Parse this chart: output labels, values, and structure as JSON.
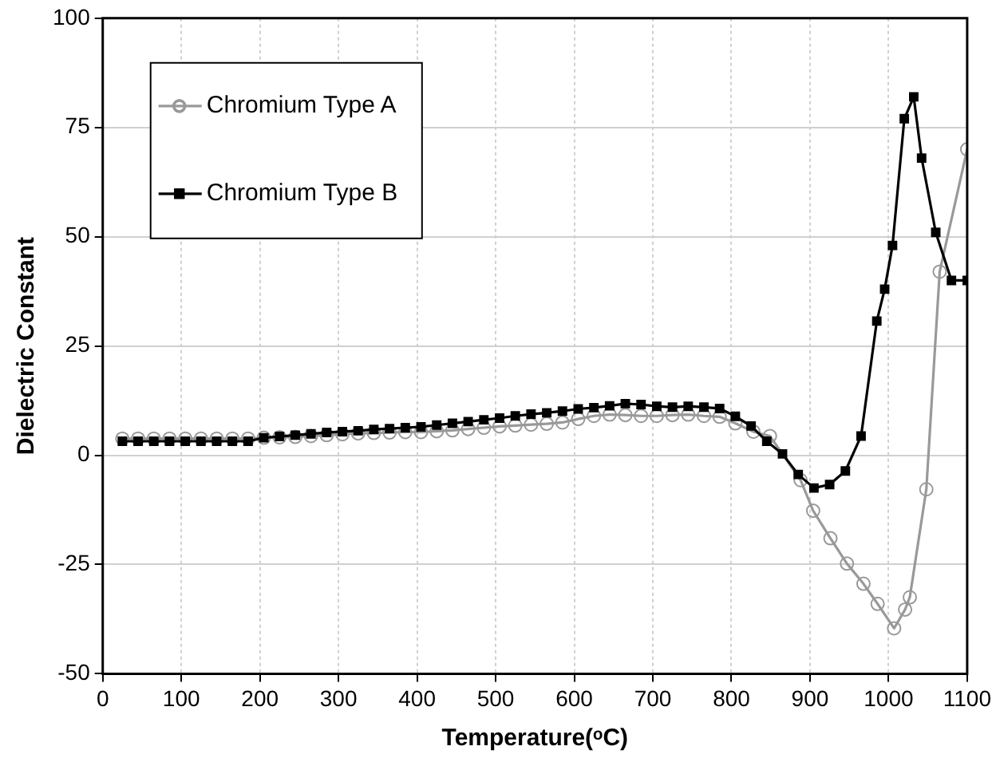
{
  "chart_data": {
    "type": "line",
    "xlabel": "Temperature(ᵒC)",
    "ylabel": "Dielectric Constant",
    "xlim": [
      0,
      1100
    ],
    "xticks": [
      0,
      100,
      200,
      300,
      400,
      500,
      600,
      700,
      800,
      900,
      1000,
      1100
    ],
    "ylim": [
      -50,
      100
    ],
    "yticks": [
      -50,
      -25,
      0,
      25,
      50,
      75,
      100
    ],
    "grid": true,
    "legend": "top left",
    "line_style": "solid",
    "series": [
      {
        "name": "Chromium Type A",
        "color": "#999999",
        "marker": "circle",
        "x": [
          25,
          45,
          65,
          85,
          105,
          125,
          145,
          165,
          185,
          205,
          225,
          245,
          265,
          285,
          305,
          325,
          345,
          365,
          385,
          405,
          425,
          445,
          465,
          485,
          505,
          525,
          545,
          565,
          585,
          605,
          625,
          645,
          665,
          685,
          705,
          725,
          745,
          765,
          785,
          805,
          828,
          849,
          868,
          888,
          904,
          926,
          947,
          968,
          986,
          1007,
          1021,
          1027,
          1048,
          1065,
          1100
        ],
        "values": [
          3.8,
          3.8,
          3.8,
          3.8,
          3.8,
          3.8,
          3.8,
          3.8,
          3.8,
          4.0,
          4.1,
          4.2,
          4.4,
          4.6,
          4.8,
          5.0,
          5.1,
          5.2,
          5.3,
          5.3,
          5.5,
          5.7,
          6.0,
          6.3,
          6.6,
          6.8,
          7.0,
          7.2,
          7.5,
          8.3,
          9.0,
          9.3,
          9.2,
          9.0,
          9.0,
          9.2,
          9.3,
          9.0,
          8.8,
          7.3,
          5.4,
          4.4,
          null,
          -5.7,
          -12.7,
          -19,
          -24.8,
          -29.4,
          -34,
          -39.6,
          -35.3,
          -32.5,
          -7.8,
          42,
          70
        ]
      },
      {
        "name": "Chromium Type B",
        "color": "#000000",
        "marker": "square",
        "x": [
          25,
          45,
          65,
          85,
          105,
          125,
          145,
          165,
          185,
          205,
          225,
          245,
          265,
          285,
          305,
          325,
          345,
          365,
          385,
          405,
          425,
          445,
          465,
          485,
          505,
          525,
          545,
          565,
          585,
          605,
          625,
          645,
          665,
          685,
          705,
          725,
          745,
          765,
          785,
          805,
          825,
          845,
          865,
          885,
          905,
          925,
          945,
          965,
          985,
          995,
          1005,
          1020,
          1032,
          1042,
          1060,
          1080,
          1100
        ],
        "values": [
          3.2,
          3.2,
          3.2,
          3.2,
          3.2,
          3.2,
          3.2,
          3.2,
          3.2,
          4.0,
          4.3,
          4.6,
          4.9,
          5.2,
          5.4,
          5.6,
          5.9,
          6.1,
          6.3,
          6.5,
          6.9,
          7.3,
          7.7,
          8.1,
          8.5,
          9.0,
          9.4,
          9.7,
          10.1,
          10.6,
          10.9,
          11.3,
          11.8,
          11.6,
          11.2,
          11.0,
          11.2,
          11.0,
          10.7,
          8.9,
          6.7,
          3.2,
          0.3,
          -4.4,
          -7.5,
          -6.7,
          -3.6,
          4.4,
          30.7,
          38,
          48,
          77,
          82,
          68,
          51,
          40,
          40
        ]
      }
    ]
  }
}
